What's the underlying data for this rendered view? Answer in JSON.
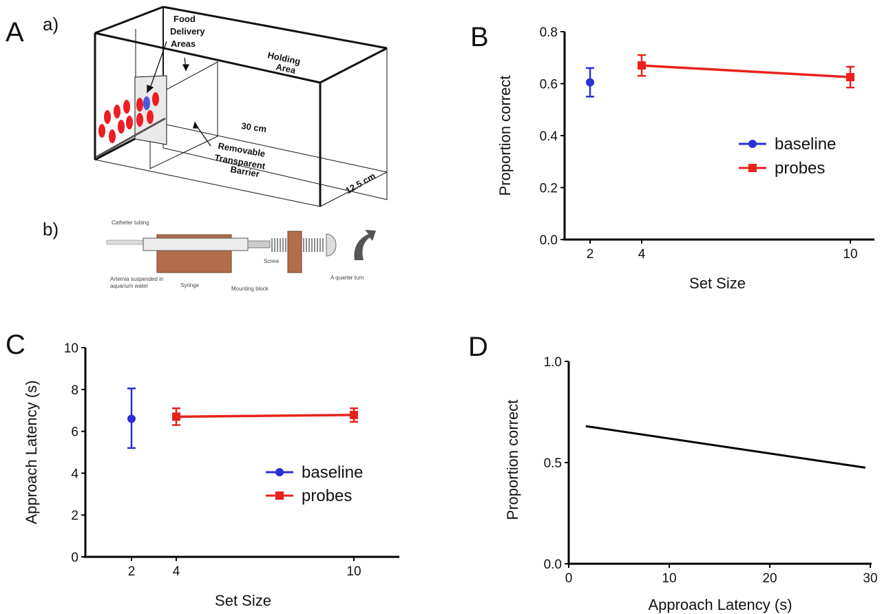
{
  "panels": {
    "A": "A",
    "B": "B",
    "C": "C",
    "D": "D",
    "a": "a)",
    "b": "b)"
  },
  "diagram_a": {
    "food_delivery_areas": [
      "Food",
      "Delivery",
      "Areas"
    ],
    "holding_area": [
      "Holding",
      "Area"
    ],
    "length": "30 cm",
    "barrier": [
      "Removable",
      "Transparent",
      "Barrier"
    ],
    "width": "12.5 cm"
  },
  "diagram_b": {
    "catheter": "Catheter tubing",
    "artemia": [
      "Artemia suspended in",
      "aquarium water"
    ],
    "syringe": "Syringe",
    "mounting": "Mounting block",
    "screw": "Screw",
    "turn": "A quarter turn"
  },
  "colors": {
    "baseline": "#2b2fd6",
    "probes": "#e8211d",
    "fish": "#ee1c24",
    "fish_target": "#4a5ae0"
  },
  "chart_data": [
    {
      "id": "B",
      "type": "line",
      "xlabel": "Set Size",
      "ylabel": "Proportion correct",
      "xticks": [
        2,
        4,
        10
      ],
      "yticks": [
        "0.0",
        "0.2",
        "0.4",
        "0.6",
        "0.8"
      ],
      "ylim": [
        0,
        0.8
      ],
      "series": [
        {
          "name": "baseline",
          "x": [
            2
          ],
          "y": [
            0.605
          ],
          "err_low": [
            0.55
          ],
          "err_high": [
            0.66
          ],
          "color": "#2b2fd6",
          "marker": "circle"
        },
        {
          "name": "probes",
          "x": [
            4,
            10
          ],
          "y": [
            0.67,
            0.625
          ],
          "err_low": [
            0.63,
            0.585
          ],
          "err_high": [
            0.71,
            0.665
          ],
          "color": "#e8211d",
          "marker": "square"
        }
      ],
      "legend": "right"
    },
    {
      "id": "C",
      "type": "line",
      "xlabel": "Set Size",
      "ylabel": "Approach Latency (s)",
      "xticks": [
        2,
        4,
        10
      ],
      "yticks": [
        "0",
        "2",
        "4",
        "6",
        "8",
        "10"
      ],
      "ylim": [
        0,
        10
      ],
      "series": [
        {
          "name": "baseline",
          "x": [
            2
          ],
          "y": [
            6.6
          ],
          "err_low": [
            5.2
          ],
          "err_high": [
            8.05
          ],
          "color": "#2b2fd6",
          "marker": "circle"
        },
        {
          "name": "probes",
          "x": [
            4,
            10
          ],
          "y": [
            6.7,
            6.78
          ],
          "err_low": [
            6.3,
            6.45
          ],
          "err_high": [
            7.1,
            7.1
          ],
          "color": "#e8211d",
          "marker": "square"
        }
      ],
      "legend": "right"
    },
    {
      "id": "D",
      "type": "line",
      "xlabel": "Approach Latency (s)",
      "ylabel": "Proportion correct",
      "xticks": [
        "0",
        "10",
        "20",
        "30"
      ],
      "yticks": [
        "0.0",
        "0.5",
        "1.0"
      ],
      "xlim": [
        0,
        30
      ],
      "ylim": [
        0,
        1
      ],
      "series": [
        {
          "x": [
            1.7,
            29.5
          ],
          "y": [
            0.68,
            0.475
          ],
          "color": "#000000"
        }
      ]
    }
  ]
}
